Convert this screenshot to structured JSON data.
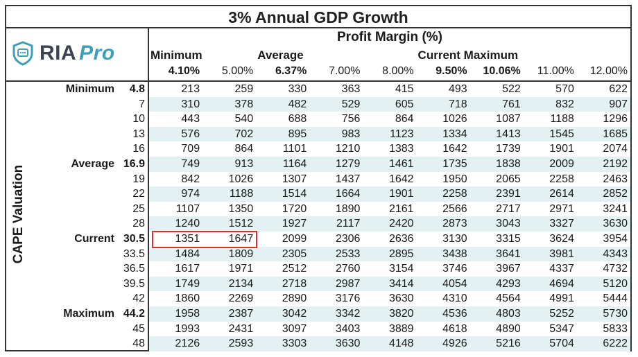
{
  "title": "3% Annual GDP Growth",
  "logo": {
    "brand": "RIA",
    "pro": "Pro"
  },
  "chart_data": {
    "type": "table",
    "title": "3% Annual GDP Growth",
    "column_axis_title": "Profit Margin (%)",
    "row_axis_title": "CAPE Valuation",
    "column_level_labels": [
      {
        "label": "Minimum",
        "col": 0
      },
      {
        "label": "Average",
        "col": 2
      },
      {
        "label": "Current Maximum",
        "col": 5
      }
    ],
    "columns": [
      "4.10%",
      "5.00%",
      "6.37%",
      "7.00%",
      "8.00%",
      "9.50%",
      "10.06%",
      "11.00%",
      "12.00%"
    ],
    "bold_columns": [
      0,
      2,
      5,
      6
    ],
    "rows": [
      {
        "cape": "4.8",
        "label": "Minimum",
        "values": [
          213,
          259,
          330,
          363,
          415,
          493,
          522,
          570,
          622
        ]
      },
      {
        "cape": "7",
        "label": "",
        "values": [
          310,
          378,
          482,
          529,
          605,
          718,
          761,
          832,
          907
        ]
      },
      {
        "cape": "10",
        "label": "",
        "values": [
          443,
          540,
          688,
          756,
          864,
          1026,
          1087,
          1188,
          1296
        ]
      },
      {
        "cape": "13",
        "label": "",
        "values": [
          576,
          702,
          895,
          983,
          1123,
          1334,
          1413,
          1545,
          1685
        ]
      },
      {
        "cape": "16",
        "label": "",
        "values": [
          709,
          864,
          1101,
          1210,
          1383,
          1642,
          1739,
          1901,
          2074
        ]
      },
      {
        "cape": "16.9",
        "label": "Average",
        "values": [
          749,
          913,
          1164,
          1279,
          1461,
          1735,
          1838,
          2009,
          2192
        ]
      },
      {
        "cape": "19",
        "label": "",
        "values": [
          842,
          1026,
          1307,
          1437,
          1642,
          1950,
          2065,
          2258,
          2463
        ]
      },
      {
        "cape": "22",
        "label": "",
        "values": [
          974,
          1188,
          1514,
          1664,
          1901,
          2258,
          2391,
          2614,
          2852
        ]
      },
      {
        "cape": "25",
        "label": "",
        "values": [
          1107,
          1350,
          1720,
          1890,
          2161,
          2566,
          2717,
          2971,
          3241
        ]
      },
      {
        "cape": "28",
        "label": "",
        "values": [
          1240,
          1512,
          1927,
          2117,
          2420,
          2873,
          3043,
          3327,
          3630
        ]
      },
      {
        "cape": "30.5",
        "label": "Current",
        "values": [
          1351,
          1647,
          2099,
          2306,
          2636,
          3130,
          3315,
          3624,
          3954
        ]
      },
      {
        "cape": "33.5",
        "label": "",
        "values": [
          1484,
          1809,
          2305,
          2533,
          2895,
          3438,
          3641,
          3981,
          4343
        ]
      },
      {
        "cape": "36.5",
        "label": "",
        "values": [
          1617,
          1971,
          2512,
          2760,
          3154,
          3746,
          3967,
          4337,
          4732
        ]
      },
      {
        "cape": "39.5",
        "label": "",
        "values": [
          1749,
          2134,
          2718,
          2987,
          3414,
          4054,
          4293,
          4694,
          5120
        ]
      },
      {
        "cape": "42",
        "label": "",
        "values": [
          1860,
          2269,
          2890,
          3176,
          3630,
          4310,
          4564,
          4991,
          5444
        ]
      },
      {
        "cape": "44.2",
        "label": "Maximum",
        "values": [
          1958,
          2387,
          3042,
          3342,
          3820,
          4536,
          4803,
          5252,
          5730
        ]
      },
      {
        "cape": "45",
        "label": "",
        "values": [
          1993,
          2431,
          3097,
          3403,
          3889,
          4618,
          4890,
          5347,
          5833
        ]
      },
      {
        "cape": "48",
        "label": "",
        "values": [
          2126,
          2593,
          3303,
          3630,
          4148,
          4926,
          5216,
          5704,
          6222
        ]
      }
    ],
    "highlight": {
      "row": 10,
      "cols": [
        0,
        1
      ]
    },
    "colors": {
      "stripe": "#e3f1f3",
      "highlight": "#d9302c",
      "logo_accent": "#3e9fb6"
    }
  }
}
